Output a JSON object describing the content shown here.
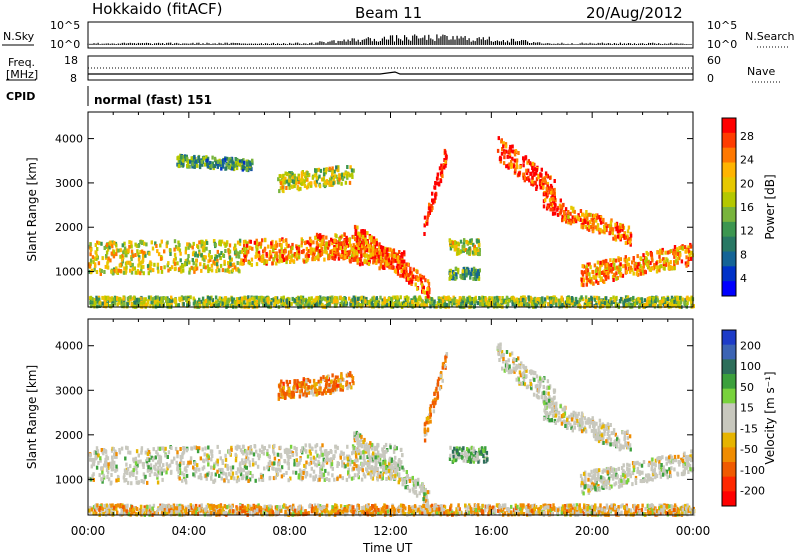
{
  "header": {
    "station": "Hokkaido (fitACF)",
    "beam": "Beam 11",
    "date": "20/Aug/2012"
  },
  "top_panels": {
    "nsky_label": "N.Sky",
    "nsky_ticks": [
      "10^5",
      "10^0"
    ],
    "nsearch_label": "N.Search",
    "nsearch_ticks": [
      "10^5",
      "10^0"
    ],
    "freq_label_1": "Freq.",
    "freq_label_2": "[MHz]",
    "freq_ticks": [
      "18",
      "8"
    ],
    "nave_label": "Nave",
    "nave_ticks": [
      "60",
      "0"
    ],
    "cpid_label": "CPID",
    "cpid_value": "normal (fast) 151"
  },
  "chart_data": [
    {
      "type": "heatmap",
      "panel": "power",
      "xlabel": "Time UT",
      "ylabel": "Slant Range [km]",
      "x_ticks": [
        "00:00",
        "04:00",
        "08:00",
        "12:00",
        "16:00",
        "20:00",
        "00:00"
      ],
      "y_ticks": [
        1000,
        2000,
        3000,
        4000
      ],
      "ylim": [
        200,
        4600
      ],
      "xlim_hours": [
        0,
        24
      ],
      "colorbar": {
        "label": "Power [dB]",
        "ticks": [
          28,
          24,
          20,
          16,
          12,
          8,
          4
        ],
        "colors": [
          "#ff0000",
          "#ff3c00",
          "#ff7800",
          "#ffb400",
          "#e6c800",
          "#b4c800",
          "#78b43c",
          "#3c9650",
          "#287864",
          "#146496",
          "#0032c8",
          "#0000ff"
        ]
      },
      "bands": [
        {
          "t": [
            0,
            24
          ],
          "r_center": [
            300,
            300
          ],
          "r_width": 150,
          "level": 0.5
        },
        {
          "t": [
            0,
            6
          ],
          "r_center": [
            1300,
            1350
          ],
          "r_width": 450,
          "level": 0.6
        },
        {
          "t": [
            6,
            11
          ],
          "r_center": [
            1400,
            1600
          ],
          "r_width": 350,
          "level": 0.75
        },
        {
          "t": [
            9,
            12.5
          ],
          "r_center": [
            1600,
            1200
          ],
          "r_width": 300,
          "level": 0.8
        },
        {
          "t": [
            10.5,
            13.5
          ],
          "r_center": [
            1900,
            600
          ],
          "r_width": 250,
          "level": 0.85
        },
        {
          "t": [
            13.3,
            14.2
          ],
          "r_center": [
            2000,
            3700
          ],
          "r_width": 250,
          "level": 0.95
        },
        {
          "t": [
            14.3,
            15.5
          ],
          "r_center": [
            1550,
            1550
          ],
          "r_width": 200,
          "level": 0.55
        },
        {
          "t": [
            14.3,
            15.5
          ],
          "r_center": [
            950,
            950
          ],
          "r_width": 150,
          "level": 0.4
        },
        {
          "t": [
            16.2,
            18.5
          ],
          "r_center": [
            3800,
            2800
          ],
          "r_width": 350,
          "level": 0.9
        },
        {
          "t": [
            18.0,
            19.0
          ],
          "r_center": [
            2700,
            2300
          ],
          "r_width": 300,
          "level": 0.85
        },
        {
          "t": [
            19.0,
            21.5
          ],
          "r_center": [
            2300,
            1800
          ],
          "r_width": 250,
          "level": 0.8
        },
        {
          "t": [
            19.5,
            24
          ],
          "r_center": [
            900,
            1400
          ],
          "r_width": 300,
          "level": 0.75
        },
        {
          "t": [
            7.5,
            10.5
          ],
          "r_center": [
            3000,
            3200
          ],
          "r_width": 250,
          "level": 0.55
        },
        {
          "t": [
            3.5,
            6.5
          ],
          "r_center": [
            3500,
            3400
          ],
          "r_width": 150,
          "level": 0.35
        }
      ]
    },
    {
      "type": "heatmap",
      "panel": "velocity",
      "xlabel": "Time UT",
      "ylabel": "Slant Range [km]",
      "x_ticks": [
        "00:00",
        "04:00",
        "08:00",
        "12:00",
        "16:00",
        "20:00",
        "00:00"
      ],
      "y_ticks": [
        1000,
        2000,
        3000,
        4000
      ],
      "ylim": [
        200,
        4600
      ],
      "xlim_hours": [
        0,
        24
      ],
      "colorbar": {
        "label": "Velocity [m s⁻¹]",
        "ticks": [
          200,
          100,
          50,
          15,
          -15,
          -50,
          -100,
          -200
        ],
        "colors": [
          "#1e3cc8",
          "#3c64b4",
          "#2d6e5a",
          "#3ca03c",
          "#78d23c",
          "#c8c8be",
          "#c8c8be",
          "#e6b400",
          "#f08c00",
          "#f05a00",
          "#ff2800",
          "#ff0000"
        ]
      },
      "bands": [
        {
          "t": [
            0,
            24
          ],
          "r_center": [
            300,
            300
          ],
          "r_width": 150,
          "vel": -30
        },
        {
          "t": [
            0,
            12.5
          ],
          "r_center": [
            1300,
            1400
          ],
          "r_width": 500,
          "vel": 0
        },
        {
          "t": [
            10.5,
            13.5
          ],
          "r_center": [
            1900,
            600
          ],
          "r_width": 250,
          "vel": 0
        },
        {
          "t": [
            13.3,
            14.2
          ],
          "r_center": [
            2000,
            3700
          ],
          "r_width": 250,
          "vel": -60
        },
        {
          "t": [
            14.3,
            15.8
          ],
          "r_center": [
            1550,
            1550
          ],
          "r_width": 200,
          "vel": 40
        },
        {
          "t": [
            16.2,
            18.5
          ],
          "r_center": [
            3800,
            2800
          ],
          "r_width": 350,
          "vel": 0
        },
        {
          "t": [
            18.0,
            21.5
          ],
          "r_center": [
            2600,
            1800
          ],
          "r_width": 300,
          "vel": 0
        },
        {
          "t": [
            19.5,
            24
          ],
          "r_center": [
            900,
            1400
          ],
          "r_width": 300,
          "vel": 0
        },
        {
          "t": [
            7.5,
            10.5
          ],
          "r_center": [
            3000,
            3200
          ],
          "r_width": 250,
          "vel": -70
        }
      ]
    }
  ]
}
